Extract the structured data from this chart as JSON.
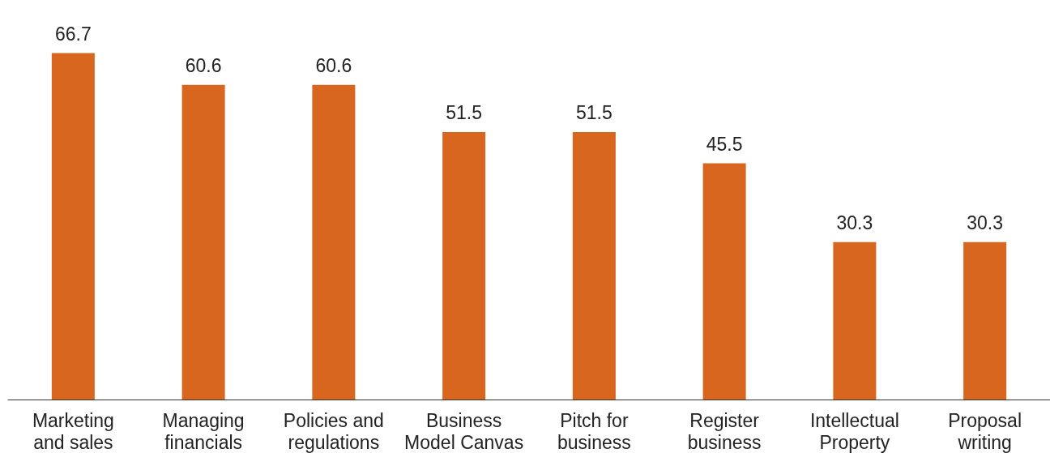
{
  "chart_data": {
    "type": "bar",
    "categories": [
      "Marketing\nand sales",
      "Managing\nfinancials",
      "Policies and\nregulations",
      "Business\nModel Canvas",
      "Pitch for\nbusiness",
      "Register\nbusiness",
      "Intellectual\nProperty",
      "Proposal\nwriting"
    ],
    "values": [
      66.7,
      60.6,
      60.6,
      51.5,
      51.5,
      45.5,
      30.3,
      30.3
    ],
    "color": "#d9661f",
    "data_labels": true
  }
}
